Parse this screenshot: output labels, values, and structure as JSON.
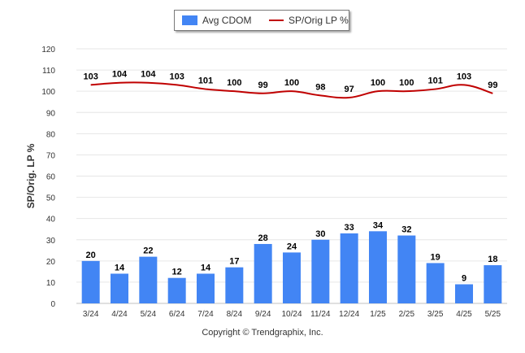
{
  "legend": {
    "bar_label": "Avg CDOM",
    "line_label": "SP/Orig LP %"
  },
  "copyright": "Copyright © Trendgraphix, Inc.",
  "colors": {
    "bar": "#4285f4",
    "line": "#c00000",
    "grid": "#e6e6e6",
    "axis_text": "#333333"
  },
  "chart_data": {
    "type": "bar",
    "categories": [
      "3/24",
      "4/24",
      "5/24",
      "6/24",
      "7/24",
      "8/24",
      "9/24",
      "10/24",
      "11/24",
      "12/24",
      "1/25",
      "2/25",
      "3/25",
      "4/25",
      "5/25"
    ],
    "series": [
      {
        "name": "Avg CDOM",
        "type": "bar",
        "values": [
          20,
          14,
          22,
          12,
          14,
          17,
          28,
          24,
          30,
          33,
          34,
          32,
          19,
          9,
          18
        ]
      },
      {
        "name": "SP/Orig LP %",
        "type": "line",
        "values": [
          103,
          104,
          104,
          103,
          101,
          100,
          99,
          100,
          98,
          97,
          100,
          100,
          101,
          103,
          99
        ]
      }
    ],
    "ylabel": "SP/Orig. LP %",
    "ylim": [
      0,
      120
    ],
    "yticks": [
      0,
      10,
      20,
      30,
      40,
      50,
      60,
      70,
      80,
      90,
      100,
      110,
      120
    ],
    "grid": true,
    "legend_position": "top-center"
  }
}
